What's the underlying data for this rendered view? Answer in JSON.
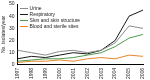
{
  "chart_data": {
    "type": "line",
    "y_label": "No. isolates/year",
    "categories": [
      "1997",
      "1998",
      "1999",
      "2000",
      "2001",
      "2002",
      "2003",
      "2004",
      "2005",
      "2006"
    ],
    "series": [
      {
        "name": "Urine",
        "color": "#8c8c8c",
        "values": [
          12,
          10,
          8,
          11,
          12,
          10,
          12,
          18,
          32,
          30
        ]
      },
      {
        "name": "Respiratory",
        "color": "#1a1a1a",
        "values": [
          5,
          7,
          6,
          8,
          10,
          9,
          12,
          20,
          40,
          45
        ]
      },
      {
        "name": "Skin and skin structure",
        "color": "#4f9a4f",
        "values": [
          3,
          4,
          5,
          5,
          6,
          8,
          10,
          15,
          22,
          25
        ]
      },
      {
        "name": "Blood and sterile sites",
        "color": "#e8862a",
        "values": [
          2,
          3,
          3,
          4,
          3,
          5,
          6,
          5,
          8,
          7
        ]
      }
    ],
    "ylim": [
      0,
      50
    ],
    "yticks": [
      0,
      10,
      20,
      30,
      40,
      50
    ],
    "grid": false,
    "legend": "upper left"
  }
}
